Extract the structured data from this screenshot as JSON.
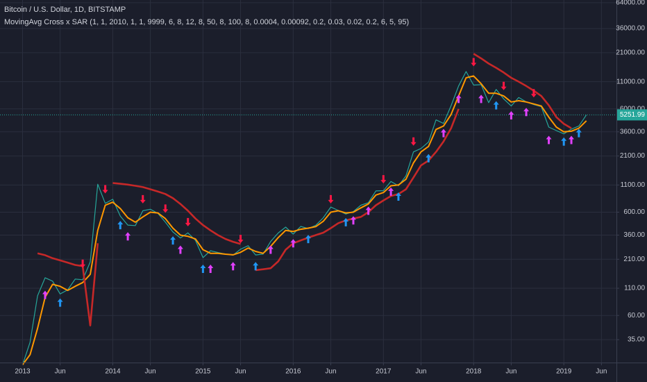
{
  "chart_data": {
    "type": "line",
    "title": "Bitcoin / U.S. Dollar, 1D, BITSTAMP",
    "subtitle": "MovingAvg Cross x SAR (1, 1, 2010, 1, 1, 9999, 6, 8, 12, 8, 50, 8, 100, 8, 0.0004, 0.00092, 0.2, 0.03, 0.02, 0.2, 6, 5, 95)",
    "log_y": true,
    "grid": true,
    "ylim": [
      21,
      68000
    ],
    "yticks": [
      {
        "value": 64000,
        "label": "64000.00"
      },
      {
        "value": 36000,
        "label": "36000.00"
      },
      {
        "value": 21000,
        "label": "21000.00"
      },
      {
        "value": 11000,
        "label": "11000.00"
      },
      {
        "value": 6000,
        "label": "6000.00"
      },
      {
        "value": 3600,
        "label": "3600.00"
      },
      {
        "value": 2100,
        "label": "2100.00"
      },
      {
        "value": 1100,
        "label": "1100.00"
      },
      {
        "value": 600,
        "label": "600.00"
      },
      {
        "value": 360,
        "label": "360.00"
      },
      {
        "value": 210,
        "label": "210.00"
      },
      {
        "value": 110,
        "label": "110.00"
      },
      {
        "value": 60,
        "label": "60.00"
      },
      {
        "value": 35,
        "label": "35.00"
      }
    ],
    "xlim": [
      "2012-10",
      "2019-08"
    ],
    "xticks": [
      {
        "value": "2013-01",
        "label": "2013"
      },
      {
        "value": "2013-06",
        "label": "Jun"
      },
      {
        "value": "2014-01",
        "label": "2014"
      },
      {
        "value": "2014-06",
        "label": "Jun"
      },
      {
        "value": "2015-01",
        "label": "2015"
      },
      {
        "value": "2015-06",
        "label": "Jun"
      },
      {
        "value": "2016-01",
        "label": "2016"
      },
      {
        "value": "2016-06",
        "label": "Jun"
      },
      {
        "value": "2017-01",
        "label": "2017"
      },
      {
        "value": "2017-06",
        "label": "Jun"
      },
      {
        "value": "2018-01",
        "label": "2018"
      },
      {
        "value": "2018-06",
        "label": "Jun"
      },
      {
        "value": "2019-01",
        "label": "2019"
      },
      {
        "value": "2019-06",
        "label": "Jun"
      }
    ],
    "last_value": 5251.99,
    "last_value_color": "#26a69a",
    "x": [
      "2013-01",
      "2013-02",
      "2013-03",
      "2013-04",
      "2013-05",
      "2013-06",
      "2013-07",
      "2013-08",
      "2013-09",
      "2013-10",
      "2013-11",
      "2013-12",
      "2014-01",
      "2014-02",
      "2014-03",
      "2014-04",
      "2014-05",
      "2014-06",
      "2014-07",
      "2014-08",
      "2014-09",
      "2014-10",
      "2014-11",
      "2014-12",
      "2015-01",
      "2015-02",
      "2015-03",
      "2015-04",
      "2015-05",
      "2015-06",
      "2015-07",
      "2015-08",
      "2015-09",
      "2015-10",
      "2015-11",
      "2015-12",
      "2016-01",
      "2016-02",
      "2016-03",
      "2016-04",
      "2016-05",
      "2016-06",
      "2016-07",
      "2016-08",
      "2016-09",
      "2016-10",
      "2016-11",
      "2016-12",
      "2017-01",
      "2017-02",
      "2017-03",
      "2017-04",
      "2017-05",
      "2017-06",
      "2017-07",
      "2017-08",
      "2017-09",
      "2017-10",
      "2017-11",
      "2017-12",
      "2018-01",
      "2018-02",
      "2018-03",
      "2018-04",
      "2018-05",
      "2018-06",
      "2018-07",
      "2018-08",
      "2018-09",
      "2018-10",
      "2018-11",
      "2018-12",
      "2019-01",
      "2019-02",
      "2019-03",
      "2019-04"
    ],
    "series": [
      {
        "color": "#26a69a",
        "style": "thin-line",
        "values": [
          20,
          33,
          93,
          139,
          129,
          97,
          106,
          135,
          133,
          198,
          1120,
          730,
          800,
          550,
          450,
          445,
          620,
          640,
          585,
          480,
          386,
          338,
          378,
          320,
          218,
          254,
          244,
          236,
          230,
          263,
          284,
          231,
          236,
          312,
          377,
          430,
          368,
          437,
          416,
          448,
          530,
          673,
          624,
          575,
          608,
          700,
          742,
          964,
          970,
          1190,
          1080,
          1350,
          2300,
          2480,
          2870,
          4700,
          4340,
          6450,
          10000,
          13800,
          10200,
          10300,
          6900,
          9250,
          7500,
          6400,
          7730,
          7030,
          6600,
          6300,
          4000,
          3700,
          3440,
          3820,
          4100,
          5252
        ]
      },
      {
        "color": "#ff9800",
        "style": "line",
        "values": [
          20,
          25,
          45,
          90,
          120,
          115,
          105,
          115,
          125,
          150,
          400,
          700,
          750,
          650,
          530,
          480,
          540,
          600,
          590,
          520,
          420,
          360,
          350,
          330,
          260,
          240,
          240,
          235,
          232,
          245,
          270,
          250,
          240,
          280,
          340,
          400,
          390,
          410,
          420,
          435,
          490,
          600,
          620,
          590,
          600,
          660,
          720,
          880,
          930,
          1080,
          1100,
          1250,
          1800,
          2300,
          2600,
          3800,
          4100,
          5300,
          8000,
          12000,
          12500,
          10500,
          8500,
          8500,
          8000,
          7000,
          7200,
          7000,
          6700,
          6400,
          5000,
          4000,
          3600,
          3650,
          3900,
          4600
        ]
      },
      {
        "color": "#c62828",
        "style": "bold-line",
        "values": [
          null,
          null,
          240,
          230,
          215,
          205,
          195,
          185,
          180,
          48,
          300,
          null,
          1150,
          1130,
          1110,
          1080,
          1050,
          1000,
          950,
          900,
          820,
          720,
          620,
          520,
          450,
          400,
          360,
          330,
          310,
          295,
          null,
          165,
          168,
          172,
          200,
          260,
          300,
          320,
          340,
          360,
          380,
          420,
          470,
          500,
          520,
          540,
          600,
          700,
          780,
          860,
          900,
          1000,
          1300,
          1700,
          1900,
          2300,
          2900,
          3900,
          6000,
          null,
          20500,
          18500,
          16500,
          15000,
          13500,
          12000,
          11000,
          10000,
          9000,
          8000,
          6500,
          5000,
          4300,
          3900,
          null,
          null
        ]
      },
      {
        "color": "#2196f3",
        "style": "arrow-up",
        "values": [
          null,
          null,
          null,
          null,
          null,
          80,
          null,
          null,
          null,
          null,
          null,
          null,
          null,
          450,
          null,
          null,
          null,
          null,
          null,
          null,
          320,
          null,
          null,
          null,
          170,
          null,
          null,
          null,
          null,
          null,
          null,
          180,
          null,
          null,
          null,
          null,
          null,
          null,
          330,
          null,
          null,
          null,
          null,
          480,
          null,
          null,
          null,
          null,
          null,
          null,
          850,
          null,
          null,
          null,
          2000,
          null,
          null,
          null,
          null,
          null,
          null,
          null,
          null,
          6500,
          null,
          null,
          null,
          null,
          null,
          null,
          null,
          null,
          2900,
          null,
          3500,
          null
        ]
      },
      {
        "color": "#ff1744",
        "style": "arrow-down",
        "values": [
          null,
          null,
          null,
          null,
          null,
          null,
          null,
          null,
          190,
          null,
          null,
          1000,
          null,
          null,
          null,
          null,
          800,
          null,
          null,
          650,
          null,
          null,
          480,
          null,
          null,
          null,
          null,
          null,
          null,
          330,
          null,
          null,
          null,
          null,
          null,
          null,
          null,
          null,
          null,
          null,
          null,
          800,
          null,
          null,
          null,
          null,
          null,
          null,
          1250,
          null,
          null,
          null,
          2900,
          null,
          null,
          null,
          null,
          null,
          null,
          null,
          17000,
          null,
          null,
          null,
          10000,
          null,
          null,
          null,
          8500,
          null,
          null,
          null,
          null,
          null,
          null,
          null
        ]
      },
      {
        "color": "#e040fb",
        "style": "arrow-up",
        "values": [
          null,
          null,
          null,
          95,
          null,
          null,
          null,
          null,
          null,
          null,
          null,
          null,
          null,
          null,
          350,
          null,
          null,
          null,
          null,
          null,
          null,
          260,
          null,
          null,
          null,
          170,
          null,
          null,
          180,
          null,
          null,
          null,
          null,
          260,
          null,
          null,
          300,
          null,
          null,
          null,
          null,
          null,
          null,
          null,
          500,
          null,
          620,
          null,
          null,
          950,
          null,
          null,
          null,
          null,
          null,
          null,
          3500,
          null,
          7500,
          null,
          null,
          7500,
          null,
          null,
          null,
          5200,
          null,
          5600,
          null,
          null,
          3000,
          null,
          null,
          3000,
          null,
          null
        ]
      }
    ]
  }
}
